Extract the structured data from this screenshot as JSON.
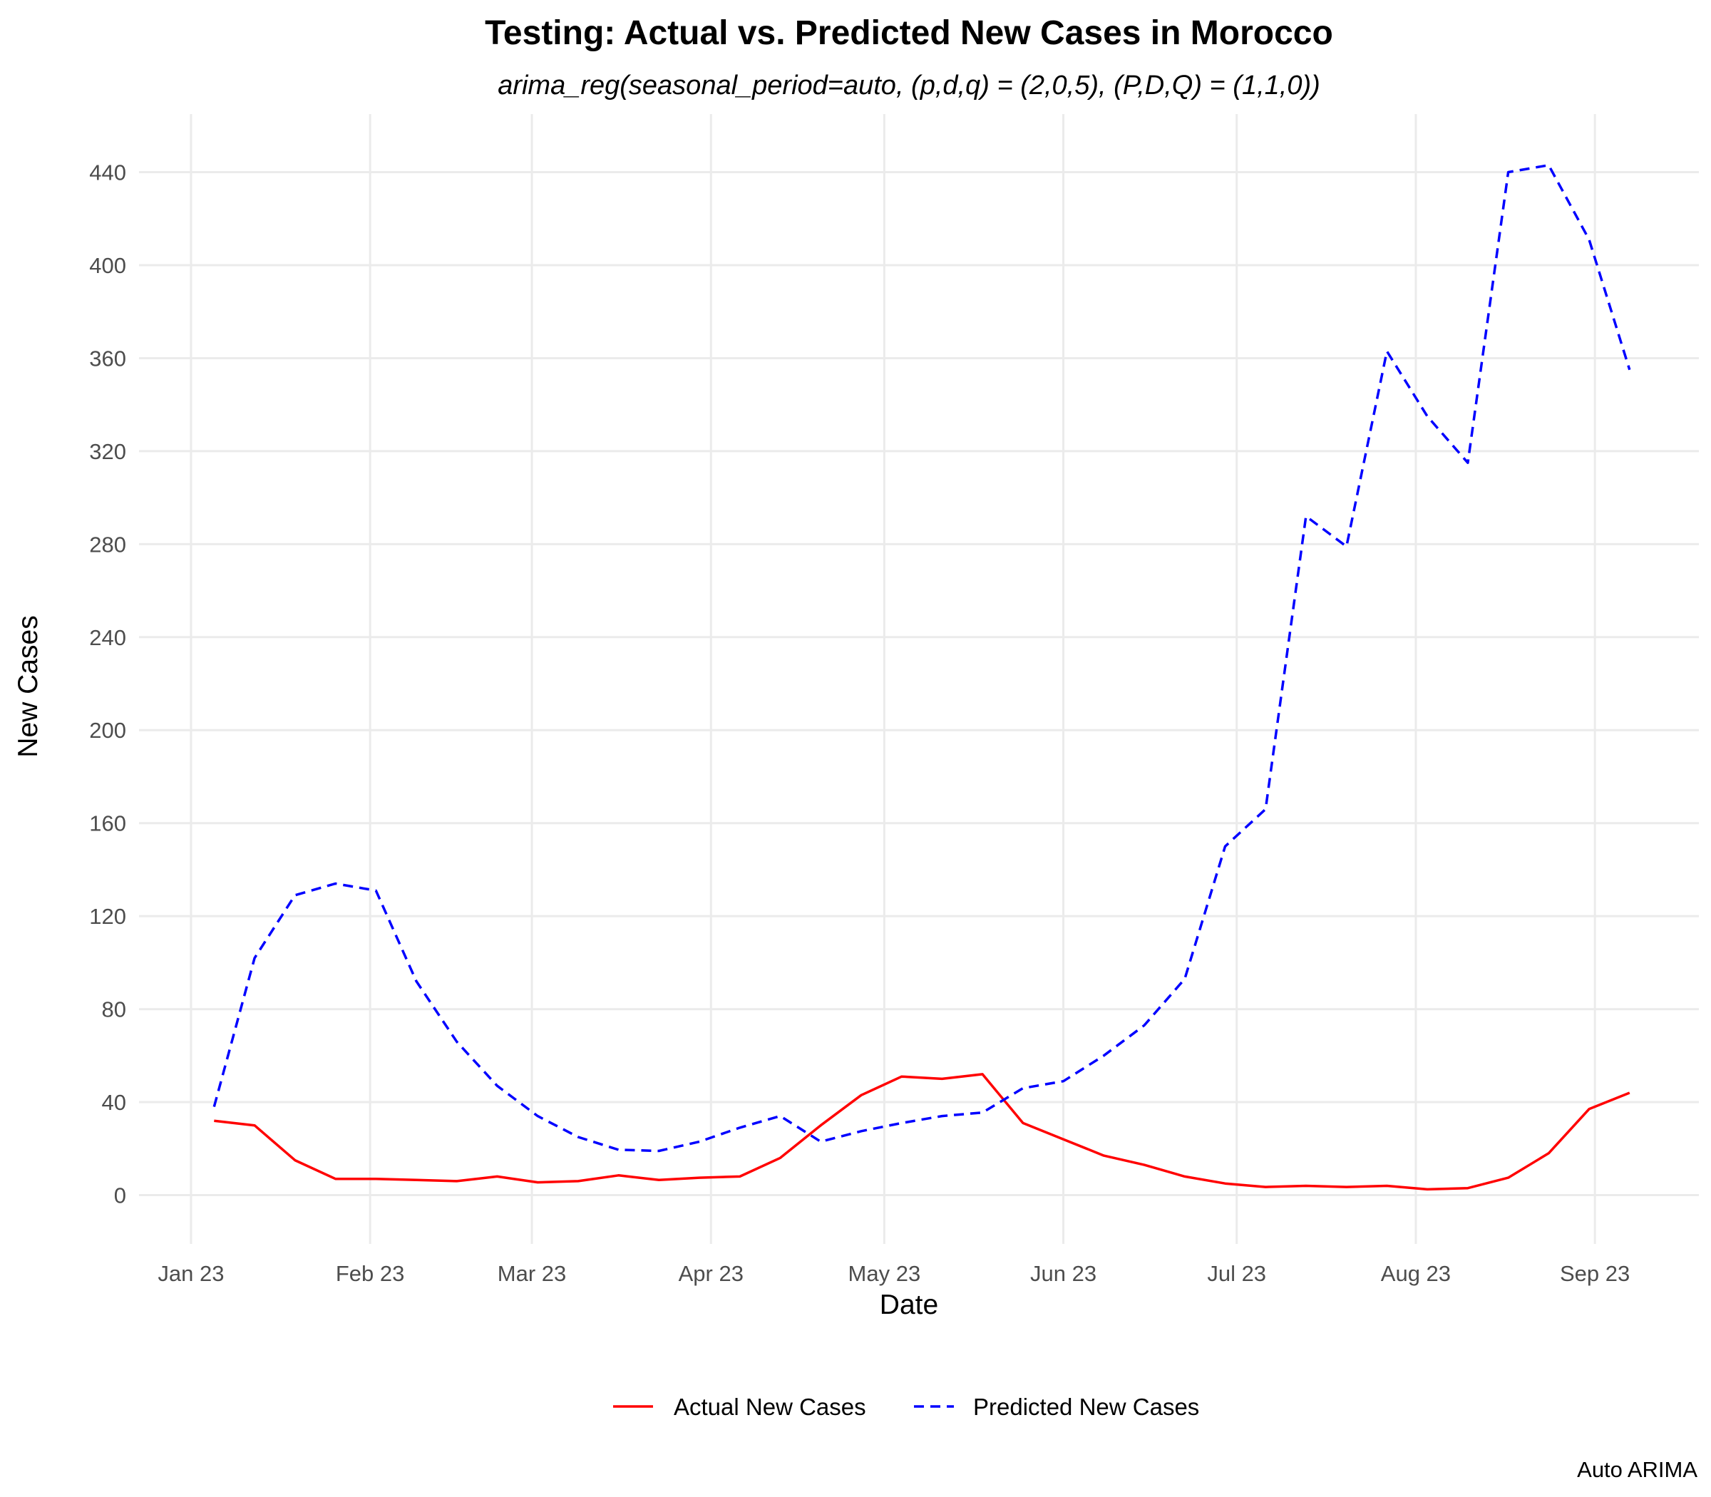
{
  "chart_data": {
    "type": "line",
    "title": "Testing: Actual vs. Predicted New Cases in Morocco",
    "subtitle": "arima_reg(seasonal_period=auto, (p,d,q) = (2,0,5), (P,D,Q) = (1,1,0))",
    "xlabel": "Date",
    "ylabel": "New Cases",
    "caption": "Auto ARIMA",
    "x_tick_labels": [
      "Jan 23",
      "Feb 23",
      "Mar 23",
      "Apr 23",
      "May 23",
      "Jun 23",
      "Jul 23",
      "Aug 23",
      "Sep 23"
    ],
    "x_tick_dates": [
      "2023-01-01",
      "2023-02-01",
      "2023-03-01",
      "2023-04-01",
      "2023-05-01",
      "2023-06-01",
      "2023-07-01",
      "2023-08-01",
      "2023-09-01"
    ],
    "xlim": [
      "2022-12-23",
      "2023-09-19"
    ],
    "y_ticks": [
      0,
      40,
      80,
      120,
      160,
      200,
      240,
      280,
      320,
      360,
      400,
      440
    ],
    "ylim": [
      -21,
      465
    ],
    "grid": true,
    "legend_position": "bottom",
    "x": [
      "2023-01-05",
      "2023-01-12",
      "2023-01-19",
      "2023-01-26",
      "2023-02-02",
      "2023-02-09",
      "2023-02-16",
      "2023-02-23",
      "2023-03-02",
      "2023-03-09",
      "2023-03-16",
      "2023-03-23",
      "2023-03-30",
      "2023-04-06",
      "2023-04-13",
      "2023-04-20",
      "2023-04-27",
      "2023-05-04",
      "2023-05-11",
      "2023-05-18",
      "2023-05-25",
      "2023-06-01",
      "2023-06-08",
      "2023-06-15",
      "2023-06-22",
      "2023-06-29",
      "2023-07-06",
      "2023-07-13",
      "2023-07-20",
      "2023-07-27",
      "2023-08-03",
      "2023-08-10",
      "2023-08-17",
      "2023-08-24",
      "2023-08-31",
      "2023-09-07"
    ],
    "series": [
      {
        "name": "Actual New Cases",
        "color": "#ff0000",
        "style": "solid",
        "values": [
          32,
          30,
          15,
          7,
          7,
          6.5,
          6,
          8,
          5.5,
          6,
          8.5,
          6.5,
          7.5,
          8,
          16,
          30,
          43,
          51,
          50,
          52,
          31,
          24,
          17,
          13,
          8,
          5,
          3.5,
          4,
          3.5,
          4,
          2.5,
          3,
          7.5,
          18,
          37,
          44
        ]
      },
      {
        "name": "Predicted New Cases",
        "color": "#0000ff",
        "style": "dashed",
        "values": [
          38,
          102,
          129,
          134,
          131,
          92,
          66,
          47,
          34,
          25,
          19.5,
          19,
          23,
          29,
          34,
          23,
          27.5,
          31,
          34,
          35.5,
          46,
          49,
          60,
          73,
          93,
          150,
          166,
          292,
          279,
          363,
          335,
          315,
          440,
          443,
          411,
          355
        ]
      }
    ]
  }
}
